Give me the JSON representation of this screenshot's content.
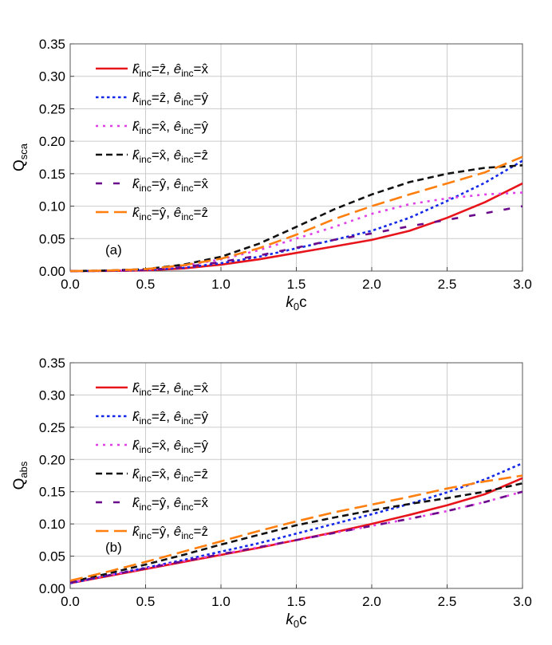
{
  "chart_data": [
    {
      "type": "line",
      "annotation": "(a)",
      "xlabel": "k0c",
      "xlabel_parts": {
        "main": "k",
        "sub": "0",
        "tail": "c"
      },
      "ylabel": "Qsca",
      "ylabel_parts": {
        "main": "Q",
        "sub": "sca"
      },
      "xlim": [
        0.0,
        3.0
      ],
      "ylim": [
        0.0,
        0.35
      ],
      "xticks": [
        "0.0",
        "0.5",
        "1.0",
        "1.5",
        "2.0",
        "2.5",
        "3.0"
      ],
      "yticks": [
        "0.00",
        "0.05",
        "0.10",
        "0.15",
        "0.20",
        "0.25",
        "0.30",
        "0.35"
      ],
      "grid": true,
      "legend_position": "top-left",
      "x": [
        0.0,
        0.25,
        0.5,
        0.75,
        1.0,
        1.25,
        1.5,
        1.75,
        2.0,
        2.25,
        2.5,
        2.75,
        3.0
      ],
      "series": [
        {
          "name": "k̂inc=ẑ, êinc=x̂",
          "k": "z",
          "e": "x",
          "color": "#e8141c",
          "dash": "solid",
          "values": [
            0.0,
            0.0003,
            0.001,
            0.004,
            0.01,
            0.018,
            0.028,
            0.038,
            0.048,
            0.062,
            0.082,
            0.106,
            0.135
          ]
        },
        {
          "name": "k̂inc=ẑ, êinc=ŷ",
          "k": "z",
          "e": "y",
          "color": "#1428e8",
          "dash": "dotted",
          "values": [
            0.0,
            0.0004,
            0.0015,
            0.005,
            0.012,
            0.022,
            0.035,
            0.048,
            0.062,
            0.082,
            0.108,
            0.136,
            0.17
          ]
        },
        {
          "name": "k̂inc=x̂, êinc=ŷ",
          "k": "x",
          "e": "y",
          "color": "#e040e8",
          "dash": "magdot",
          "values": [
            0.0,
            0.0006,
            0.002,
            0.008,
            0.018,
            0.032,
            0.05,
            0.068,
            0.088,
            0.103,
            0.112,
            0.118,
            0.121
          ]
        },
        {
          "name": "k̂inc=x̂, êinc=ẑ",
          "k": "x",
          "e": "z",
          "color": "#111111",
          "dash": "dashed",
          "values": [
            0.0,
            0.0008,
            0.003,
            0.01,
            0.022,
            0.042,
            0.068,
            0.095,
            0.118,
            0.137,
            0.15,
            0.159,
            0.163
          ]
        },
        {
          "name": "k̂inc=ŷ, êinc=x̂",
          "k": "y",
          "e": "x",
          "color": "#6a0a8a",
          "dash": "longgap",
          "values": [
            0.0,
            0.0004,
            0.0015,
            0.006,
            0.014,
            0.024,
            0.036,
            0.048,
            0.058,
            0.069,
            0.079,
            0.089,
            0.1
          ]
        },
        {
          "name": "k̂inc=ŷ, êinc=ẑ",
          "k": "y",
          "e": "z",
          "color": "#ff7f0e",
          "dash": "longdash",
          "values": [
            0.0,
            0.0008,
            0.003,
            0.009,
            0.019,
            0.035,
            0.056,
            0.08,
            0.1,
            0.118,
            0.135,
            0.152,
            0.176
          ]
        }
      ]
    },
    {
      "type": "line",
      "annotation": "(b)",
      "xlabel": "k0c",
      "xlabel_parts": {
        "main": "k",
        "sub": "0",
        "tail": "c"
      },
      "ylabel": "Qabs",
      "ylabel_parts": {
        "main": "Q",
        "sub": "abs"
      },
      "xlim": [
        0.0,
        3.0
      ],
      "ylim": [
        0.0,
        0.35
      ],
      "xticks": [
        "0.0",
        "0.5",
        "1.0",
        "1.5",
        "2.0",
        "2.5",
        "3.0"
      ],
      "yticks": [
        "0.00",
        "0.05",
        "0.10",
        "0.15",
        "0.20",
        "0.25",
        "0.30",
        "0.35"
      ],
      "grid": true,
      "legend_position": "top-left",
      "x": [
        0.0,
        0.25,
        0.5,
        0.75,
        1.0,
        1.25,
        1.5,
        1.75,
        2.0,
        2.25,
        2.5,
        2.75,
        3.0
      ],
      "series": [
        {
          "name": "k̂inc=ẑ, êinc=x̂",
          "k": "z",
          "e": "x",
          "color": "#e8141c",
          "dash": "solid",
          "values": [
            0.008,
            0.019,
            0.03,
            0.041,
            0.052,
            0.063,
            0.075,
            0.087,
            0.1,
            0.114,
            0.129,
            0.146,
            0.171
          ]
        },
        {
          "name": "k̂inc=ẑ, êinc=ŷ",
          "k": "z",
          "e": "y",
          "color": "#1428e8",
          "dash": "dotted",
          "values": [
            0.008,
            0.02,
            0.032,
            0.044,
            0.057,
            0.07,
            0.085,
            0.1,
            0.115,
            0.131,
            0.149,
            0.169,
            0.194
          ]
        },
        {
          "name": "k̂inc=x̂, êinc=ŷ",
          "k": "x",
          "e": "y",
          "color": "#e040e8",
          "dash": "magdot",
          "values": [
            0.009,
            0.02,
            0.031,
            0.042,
            0.053,
            0.064,
            0.075,
            0.086,
            0.097,
            0.108,
            0.12,
            0.134,
            0.15
          ]
        },
        {
          "name": "k̂inc=x̂, êinc=ẑ",
          "k": "x",
          "e": "z",
          "color": "#111111",
          "dash": "dashed",
          "values": [
            0.01,
            0.023,
            0.037,
            0.052,
            0.068,
            0.083,
            0.098,
            0.11,
            0.121,
            0.131,
            0.14,
            0.15,
            0.163
          ]
        },
        {
          "name": "k̂inc=ŷ, êinc=x̂",
          "k": "y",
          "e": "x",
          "color": "#6a0a8a",
          "dash": "longgap",
          "values": [
            0.009,
            0.02,
            0.031,
            0.042,
            0.053,
            0.064,
            0.075,
            0.086,
            0.097,
            0.108,
            0.12,
            0.134,
            0.15
          ]
        },
        {
          "name": "k̂inc=ŷ, êinc=ẑ",
          "k": "y",
          "e": "z",
          "color": "#ff7f0e",
          "dash": "longdash",
          "values": [
            0.012,
            0.026,
            0.041,
            0.057,
            0.073,
            0.089,
            0.104,
            0.118,
            0.13,
            0.142,
            0.155,
            0.166,
            0.175
          ]
        }
      ]
    }
  ]
}
